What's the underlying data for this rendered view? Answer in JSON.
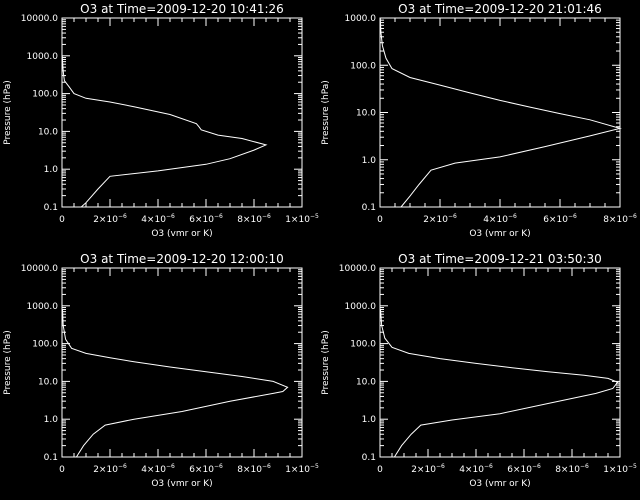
{
  "chart_data": [
    {
      "type": "line",
      "title": "O3 at Time=2009-12-20 10:41:26",
      "xlabel": "O3 (vmr or K)",
      "ylabel": "Pressure (hPa)",
      "xlim": [
        0,
        1e-05
      ],
      "ylim": [
        0.1,
        10000
      ],
      "yscale": "log",
      "x_ticks": [
        {
          "m": "0",
          "e": ""
        },
        {
          "m": "2×10",
          "e": "−6"
        },
        {
          "m": "4×10",
          "e": "−6"
        },
        {
          "m": "6×10",
          "e": "−6"
        },
        {
          "m": "8×10",
          "e": "−6"
        },
        {
          "m": "1×10",
          "e": "−5"
        }
      ],
      "y_ticks": [
        "0.1",
        "1.0",
        "10.0",
        "100.0",
        "1000.0",
        "10000.0"
      ],
      "series": [
        {
          "x": [
            8e-07,
            1e-06,
            1.5e-06,
            2e-06,
            4e-06,
            6e-06,
            7e-06,
            8e-06,
            8.5e-06,
            7.5e-06,
            6.5e-06,
            5.8e-06,
            5.7e-06,
            5.6e-06,
            4.5e-06,
            3e-06,
            2e-06,
            1e-06,
            5e-07,
            3e-07,
            1e-07,
            6e-08,
            3e-08,
            1e-08
          ],
          "y": [
            0.1,
            0.13,
            0.3,
            0.65,
            0.9,
            1.35,
            1.9,
            3.2,
            4.4,
            6.5,
            8.0,
            11.0,
            13.5,
            16.0,
            28.0,
            45.0,
            60.0,
            75.0,
            100.0,
            150.0,
            220.0,
            350.0,
            600.0,
            1000.0
          ]
        }
      ]
    },
    {
      "type": "line",
      "title": "O3 at Time=2009-12-20 21:01:46",
      "xlabel": "O3 (vmr or K)",
      "ylabel": "Pressure (hPa)",
      "xlim": [
        0,
        8e-06
      ],
      "ylim": [
        0.1,
        10000
      ],
      "yscale": "log",
      "x_ticks": [
        {
          "m": "0",
          "e": ""
        },
        {
          "m": "2×10",
          "e": "−6"
        },
        {
          "m": "4×10",
          "e": "−6"
        },
        {
          "m": "6×10",
          "e": "−6"
        },
        {
          "m": "8×10",
          "e": "−6"
        }
      ],
      "y_ticks": [
        "0.1",
        "1.0",
        "10.0",
        "100.0",
        "1000.0"
      ],
      "series": [
        {
          "x": [
            7e-07,
            1e-06,
            1.3e-06,
            1.7e-06,
            2.5e-06,
            4e-06,
            5.5e-06,
            7e-06,
            8e-06,
            7e-06,
            6e-06,
            5e-06,
            4e-06,
            3e-06,
            2e-06,
            1e-06,
            4e-07,
            2e-07,
            8e-08,
            3e-08,
            1e-08
          ],
          "y": [
            0.1,
            0.17,
            0.3,
            0.6,
            0.85,
            1.15,
            1.9,
            3.2,
            4.6,
            7.0,
            9.5,
            13.0,
            18.0,
            26.0,
            38.0,
            55.0,
            85.0,
            140.0,
            260.0,
            500.0,
            1000.0
          ]
        }
      ]
    },
    {
      "type": "line",
      "title": "O3 at Time=2009-12-20 12:00:10",
      "xlabel": "O3 (vmr or K)",
      "ylabel": "Pressure (hPa)",
      "xlim": [
        0,
        1e-05
      ],
      "ylim": [
        0.1,
        10000
      ],
      "yscale": "log",
      "x_ticks": [
        {
          "m": "0",
          "e": ""
        },
        {
          "m": "2×10",
          "e": "−6"
        },
        {
          "m": "4×10",
          "e": "−6"
        },
        {
          "m": "6×10",
          "e": "−6"
        },
        {
          "m": "8×10",
          "e": "−6"
        },
        {
          "m": "1×10",
          "e": "−5"
        }
      ],
      "y_ticks": [
        "0.1",
        "1.0",
        "10.0",
        "100.0",
        "1000.0",
        "10000.0"
      ],
      "series": [
        {
          "x": [
            6e-07,
            9e-07,
            1.3e-06,
            1.8e-06,
            3e-06,
            5e-06,
            7e-06,
            8.8e-06,
            9.2e-06,
            9.4e-06,
            8.8e-06,
            7.5e-06,
            6e-06,
            4.5e-06,
            3e-06,
            2e-06,
            1e-06,
            4e-07,
            1.5e-07,
            5e-08,
            2e-08
          ],
          "y": [
            0.1,
            0.2,
            0.4,
            0.7,
            1.0,
            1.6,
            3.0,
            4.8,
            5.4,
            7.0,
            10.0,
            13.5,
            18.0,
            24.0,
            33.0,
            42.0,
            55.0,
            75.0,
            130.0,
            300.0,
            800.0
          ]
        }
      ]
    },
    {
      "type": "line",
      "title": "O3 at Time=2009-12-21 03:50:30",
      "xlabel": "O3 (vmr or K)",
      "ylabel": "Pressure (hPa)",
      "xlim": [
        0,
        1e-05
      ],
      "ylim": [
        0.1,
        10000
      ],
      "yscale": "log",
      "x_ticks": [
        {
          "m": "0",
          "e": ""
        },
        {
          "m": "2×10",
          "e": "−6"
        },
        {
          "m": "4×10",
          "e": "−6"
        },
        {
          "m": "6×10",
          "e": "−6"
        },
        {
          "m": "8×10",
          "e": "−6"
        },
        {
          "m": "1×10",
          "e": "−5"
        }
      ],
      "y_ticks": [
        "0.1",
        "1.0",
        "10.0",
        "100.0",
        "1000.0",
        "10000.0"
      ],
      "series": [
        {
          "x": [
            6e-07,
            9e-07,
            1.3e-06,
            1.7e-06,
            3e-06,
            5e-06,
            7e-06,
            9e-06,
            9.7e-06,
            9.9e-06,
            9.5e-06,
            8.5e-06,
            7e-06,
            5.5e-06,
            4e-06,
            2.5e-06,
            1.2e-06,
            5e-07,
            2e-07,
            7e-08,
            2e-08
          ],
          "y": [
            0.1,
            0.2,
            0.4,
            0.7,
            0.95,
            1.4,
            2.6,
            4.8,
            6.5,
            9.5,
            12.0,
            14.5,
            18.0,
            23.0,
            30.0,
            40.0,
            55.0,
            80.0,
            140.0,
            300.0,
            800.0
          ]
        }
      ]
    }
  ]
}
